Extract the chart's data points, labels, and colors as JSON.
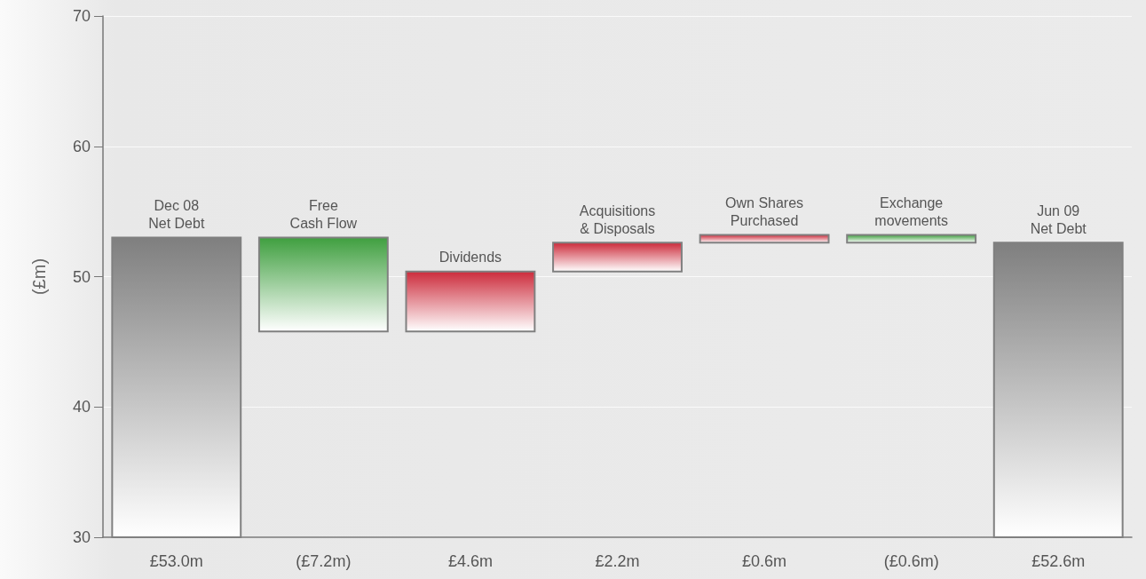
{
  "chart_data": {
    "type": "bar",
    "ylabel": "(£m)",
    "categories": [
      "Dec 08\nNet Debt",
      "Free\nCash Flow",
      "Dividends",
      "Acquisitions\n& Disposals",
      "Own Shares\nPurchased",
      "Exchange\nmovements",
      "Jun 09\nNet Debt"
    ],
    "values": [
      53.0,
      -7.2,
      4.6,
      2.2,
      0.6,
      -0.6,
      52.6
    ],
    "base": [
      null,
      53.0,
      45.8,
      50.4,
      52.6,
      53.2,
      null
    ],
    "colors": [
      "#7f7f7f",
      "#3f9f3f",
      "#cc2b3b",
      "#cc2b3b",
      "#cc2b3b",
      "#3f9f3f",
      "#7f7f7f"
    ],
    "value_labels": [
      "£53.0m",
      "(£7.2m)",
      "£4.6m",
      "£2.2m",
      "£0.6m",
      "(£0.6m)",
      "£52.6m"
    ],
    "ylim": [
      30,
      70
    ],
    "yticks": [
      30,
      40,
      50,
      60,
      70
    ],
    "grid": "y"
  }
}
